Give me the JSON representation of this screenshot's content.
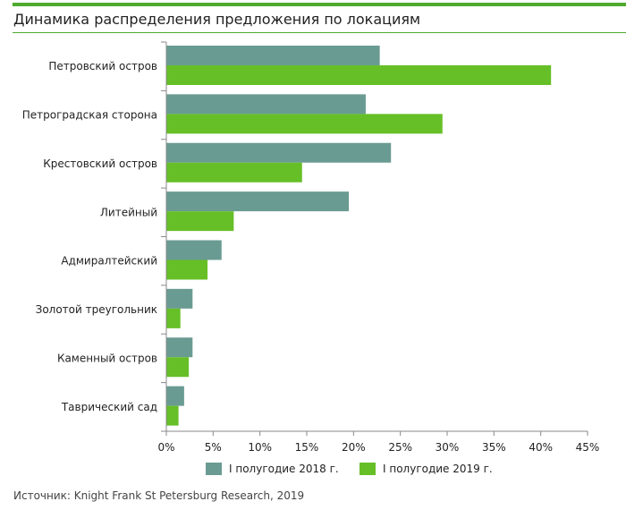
{
  "title": "Динамика распределения предложения по локациям",
  "source": "Источник: Knight Frank St Petersburg Research, 2019",
  "colors": {
    "s2018": "#6a9b92",
    "s2019": "#66bf27",
    "accent": "#4faa2e"
  },
  "chart_data": {
    "type": "bar",
    "orientation": "horizontal",
    "title": "Динамика распределения предложения по локациям",
    "categories": [
      "Петровский остров",
      "Петроградская сторона",
      "Крестовский остров",
      "Литейный",
      "Адмиралтейский",
      "Золотой треугольник",
      "Каменный остров",
      "Таврический сад"
    ],
    "series": [
      {
        "name": "I полугодие 2018 г.",
        "values": [
          22.8,
          21.3,
          24.0,
          19.5,
          5.9,
          2.8,
          2.8,
          1.9
        ]
      },
      {
        "name": "I полугодие 2019 г.",
        "values": [
          41.1,
          29.5,
          14.5,
          7.2,
          4.4,
          1.5,
          2.4,
          1.3
        ]
      }
    ],
    "xlim": [
      0,
      45
    ],
    "xticks": [
      "0%",
      "5%",
      "10%",
      "15%",
      "20%",
      "25%",
      "30%",
      "35%",
      "40%",
      "45%"
    ],
    "xlabel": "",
    "ylabel": "",
    "grid": false,
    "legend_position": "bottom"
  }
}
